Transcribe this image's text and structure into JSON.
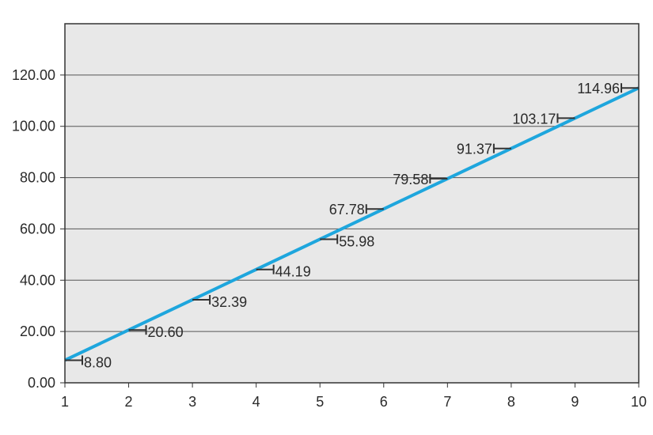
{
  "colors": {
    "background": "#ffffff",
    "plot_background": "#e8e8e8",
    "grid": "#555555",
    "frame": "#333333",
    "line": "#1ea6dd",
    "whisker": "#333333",
    "text": "#2a2a2a"
  },
  "chart_data": {
    "type": "line",
    "title": "",
    "xlabel": "",
    "ylabel": "",
    "x": [
      1,
      2,
      3,
      4,
      5,
      6,
      7,
      8,
      9,
      10
    ],
    "xlim": [
      1,
      10
    ],
    "ylim": [
      0,
      140
    ],
    "x_ticks": [
      "1",
      "2",
      "3",
      "4",
      "5",
      "6",
      "7",
      "8",
      "9",
      "10"
    ],
    "y_ticks": [
      "0.00",
      "20.00",
      "40.00",
      "60.00",
      "80.00",
      "100.00",
      "120.00"
    ],
    "grid": "horizontal",
    "series": [
      {
        "values": [
          8.8,
          20.6,
          32.39,
          44.19,
          55.98,
          67.78,
          79.58,
          91.37,
          103.17,
          114.96
        ],
        "labels": [
          "8.80",
          "20.60",
          "32.39",
          "44.19",
          "55.98",
          "67.78",
          "79.58",
          "91.37",
          "103.17",
          "114.96"
        ]
      }
    ]
  }
}
